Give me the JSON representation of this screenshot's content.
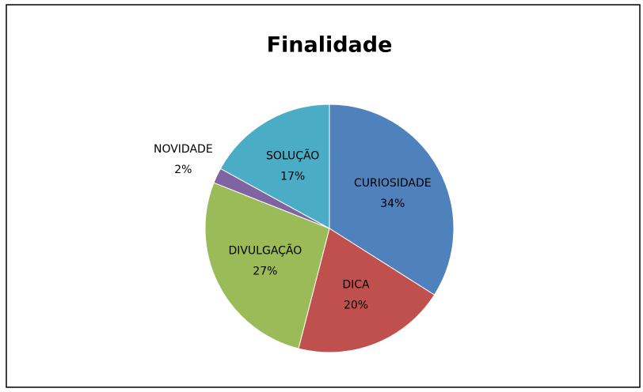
{
  "chart_data": {
    "type": "pie",
    "title": "Finalidade",
    "categories": [
      "CURIOSIDADE",
      "DICA",
      "DIVULGAÇÃO",
      "NOVIDADE",
      "SOLUÇÃO"
    ],
    "values": [
      34,
      20,
      27,
      2,
      17
    ],
    "value_labels": [
      "34%",
      "20%",
      "27%",
      "2%",
      "17%"
    ],
    "colors": [
      "#4f81bd",
      "#c0504d",
      "#9bbb59",
      "#8064a2",
      "#4bacc6"
    ]
  }
}
